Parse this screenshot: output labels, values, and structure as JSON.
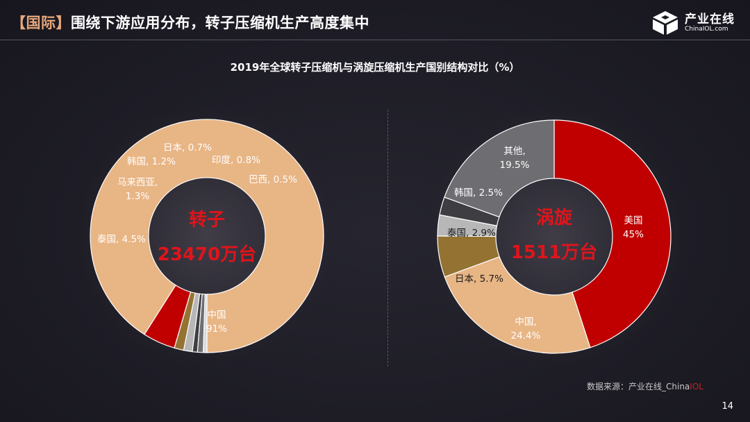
{
  "header": {
    "bracket_tag": "【国际】",
    "title": "围绕下游应用分布，转子压缩机生产高度集中"
  },
  "logo": {
    "name": "产业在线",
    "url": "ChinaIOL.com"
  },
  "source": {
    "prefix": "数据来源：产业在线_China",
    "highlight": "IOL"
  },
  "page_number": "14",
  "colors": {
    "china": "#e8b585",
    "red": "#c00000",
    "brown": "#947332",
    "silver": "#b7b7b7",
    "dark": "#3e3e42",
    "gray": "#6e6e72",
    "center_text": "#e0141b",
    "background": "#1e1d26"
  },
  "chart_data": [
    {
      "type": "pie",
      "title": "2019年全球转子压缩机与涡旋压缩机生产国别结构对比（%）",
      "center_label": [
        "转子",
        "23470万台"
      ],
      "slices": [
        {
          "label": "中国",
          "value": 91,
          "display": [
            "中国",
            "91%"
          ],
          "color": "#e8b585",
          "label_color": "#ffffff"
        },
        {
          "label": "泰国",
          "value": 4.5,
          "display": [
            "泰国, 4.5%"
          ],
          "color": "#c00000",
          "label_color": "#ffffff"
        },
        {
          "label": "马来西亚",
          "value": 1.3,
          "display": [
            "马来西亚,",
            "1.3%"
          ],
          "color": "#947332",
          "label_color": "#ffffff"
        },
        {
          "label": "韩国",
          "value": 1.2,
          "display": [
            "韩国, 1.2%"
          ],
          "color": "#b7b7b7",
          "label_color": "#ffffff"
        },
        {
          "label": "日本",
          "value": 0.7,
          "display": [
            "日本, 0.7%"
          ],
          "color": "#3e3e42",
          "label_color": "#ffffff"
        },
        {
          "label": "印度",
          "value": 0.8,
          "display": [
            "印度, 0.8%"
          ],
          "color": "#6e6e72",
          "label_color": "#ffffff"
        },
        {
          "label": "巴西",
          "value": 0.5,
          "display": [
            "巴西, 0.5%"
          ],
          "color": "#d9d9d9",
          "label_color": "#ffffff"
        }
      ]
    },
    {
      "type": "pie",
      "title": "2019年全球转子压缩机与涡旋压缩机生产国别结构对比（%）",
      "center_label": [
        "涡旋",
        "1511万台"
      ],
      "slices": [
        {
          "label": "美国",
          "value": 45,
          "display": [
            "美国",
            "45%"
          ],
          "color": "#c00000",
          "label_color": "#ffffff"
        },
        {
          "label": "中国",
          "value": 24.4,
          "display": [
            "中国,",
            "24.4%"
          ],
          "color": "#e8b585",
          "label_color": "#ffffff"
        },
        {
          "label": "日本",
          "value": 5.7,
          "display": [
            "日本, 5.7%"
          ],
          "color": "#947332",
          "label_color": "#1a1a1a"
        },
        {
          "label": "泰国",
          "value": 2.9,
          "display": [
            "泰国, 2.9%"
          ],
          "color": "#b7b7b7",
          "label_color": "#1a1a1a"
        },
        {
          "label": "韩国",
          "value": 2.5,
          "display": [
            "韩国, 2.5%"
          ],
          "color": "#3e3e42",
          "label_color": "#ffffff"
        },
        {
          "label": "其他",
          "value": 19.5,
          "display": [
            "其他,",
            "19.5%"
          ],
          "color": "#6e6e72",
          "label_color": "#ffffff"
        }
      ]
    }
  ]
}
